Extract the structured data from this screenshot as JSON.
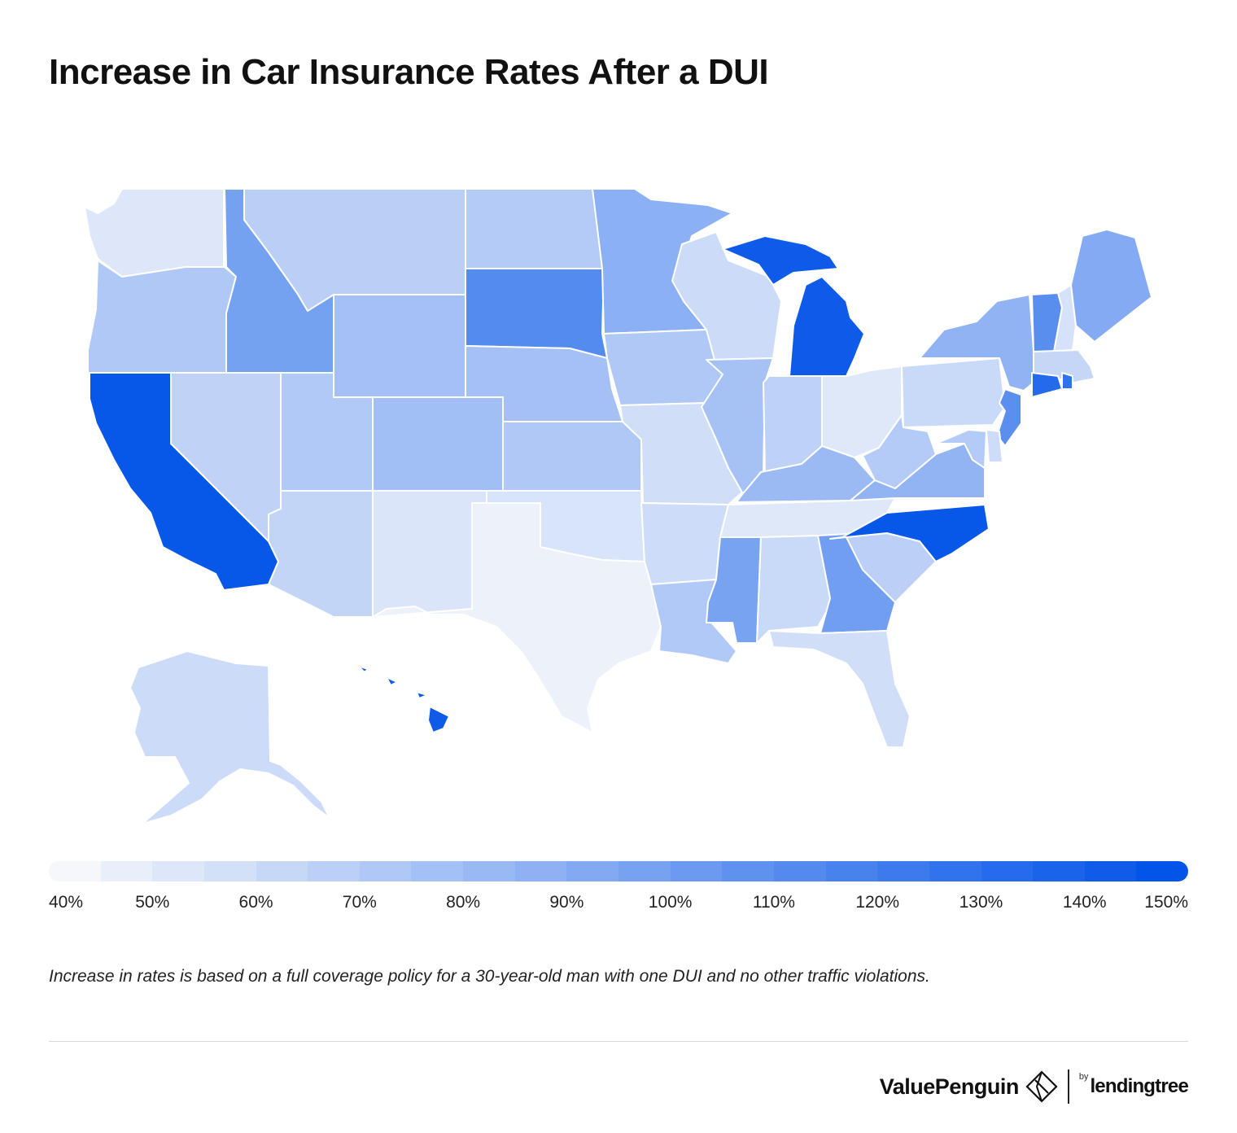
{
  "title": "Increase in Car Insurance Rates After a DUI",
  "legend": {
    "min": 40,
    "max": 150,
    "tick_labels": [
      "40%",
      "50%",
      "60%",
      "70%",
      "80%",
      "90%",
      "100%",
      "110%",
      "120%",
      "130%",
      "140%",
      "150%"
    ],
    "color_low": "#f5f7fb",
    "color_high": "#0354e8"
  },
  "chart_data": {
    "type": "choropleth",
    "metric": "Increase in rates (%)",
    "states": [
      {
        "id": "WA",
        "value": 51
      },
      {
        "id": "OR",
        "value": 72
      },
      {
        "id": "CA",
        "value": 148
      },
      {
        "id": "ID",
        "value": 98
      },
      {
        "id": "NV",
        "value": 64
      },
      {
        "id": "MT",
        "value": 67
      },
      {
        "id": "WY",
        "value": 77
      },
      {
        "id": "UT",
        "value": 71
      },
      {
        "id": "AZ",
        "value": 63
      },
      {
        "id": "CO",
        "value": 78
      },
      {
        "id": "NM",
        "value": 52
      },
      {
        "id": "ND",
        "value": 70
      },
      {
        "id": "SD",
        "value": 113
      },
      {
        "id": "NE",
        "value": 77
      },
      {
        "id": "KS",
        "value": 72
      },
      {
        "id": "OK",
        "value": 53
      },
      {
        "id": "TX",
        "value": 44
      },
      {
        "id": "MN",
        "value": 88
      },
      {
        "id": "IA",
        "value": 72
      },
      {
        "id": "MO",
        "value": 57
      },
      {
        "id": "AR",
        "value": 58
      },
      {
        "id": "LA",
        "value": 71
      },
      {
        "id": "WI",
        "value": 59
      },
      {
        "id": "IL",
        "value": 76
      },
      {
        "id": "MI",
        "value": 145
      },
      {
        "id": "IN",
        "value": 65
      },
      {
        "id": "OH",
        "value": 50
      },
      {
        "id": "KY",
        "value": 81
      },
      {
        "id": "TN",
        "value": 50
      },
      {
        "id": "MS",
        "value": 97
      },
      {
        "id": "AL",
        "value": 60
      },
      {
        "id": "GA",
        "value": 100
      },
      {
        "id": "FL",
        "value": 57
      },
      {
        "id": "SC",
        "value": 66
      },
      {
        "id": "NC",
        "value": 148
      },
      {
        "id": "VA",
        "value": 85
      },
      {
        "id": "WV",
        "value": 70
      },
      {
        "id": "PA",
        "value": 60
      },
      {
        "id": "NY",
        "value": 86
      },
      {
        "id": "VT",
        "value": 111
      },
      {
        "id": "NH",
        "value": 54
      },
      {
        "id": "ME",
        "value": 92
      },
      {
        "id": "MA",
        "value": 62
      },
      {
        "id": "CT",
        "value": 135
      },
      {
        "id": "RI",
        "value": 130
      },
      {
        "id": "NJ",
        "value": 110
      },
      {
        "id": "DE",
        "value": 58
      },
      {
        "id": "MD",
        "value": 70
      },
      {
        "id": "AK",
        "value": 59
      },
      {
        "id": "HI",
        "value": 145
      }
    ]
  },
  "footnote": "Increase in rates is based on a full coverage policy for a 30-year-old man with one DUI and no other traffic violations.",
  "branding": {
    "name": "ValuePenguin",
    "by": "by",
    "partner": "lendingtree",
    "logo_icon": "valuepenguin-diamond-logo"
  }
}
